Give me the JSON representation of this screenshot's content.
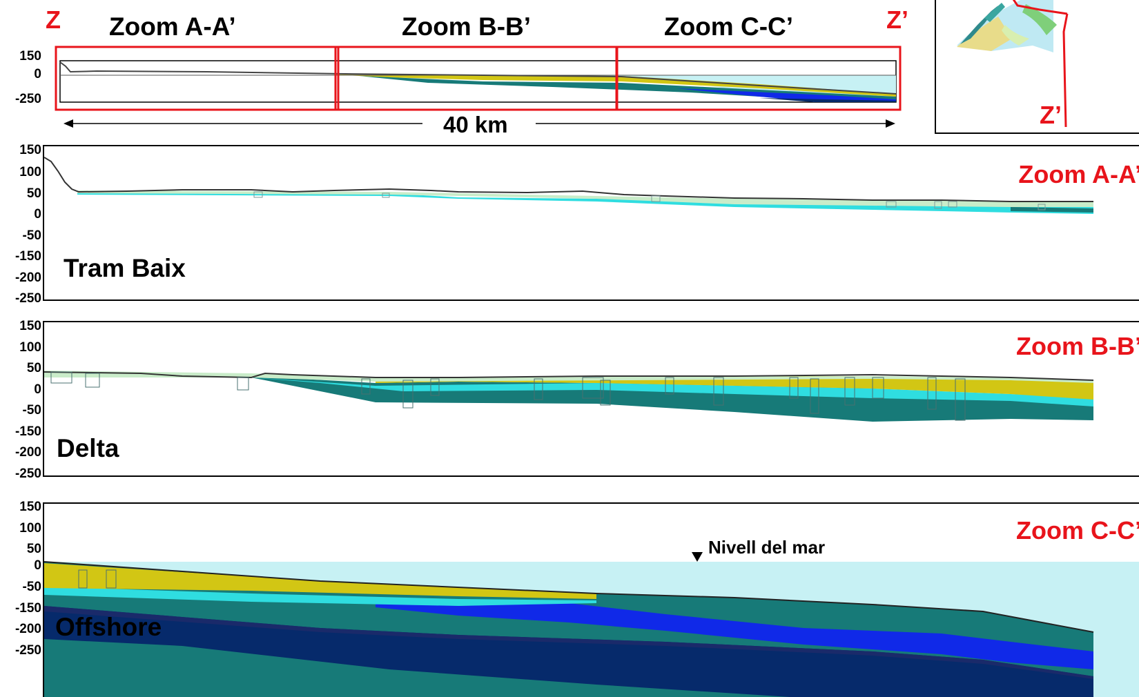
{
  "overview": {
    "left_end": "Z",
    "right_end": "Z’",
    "zoom_titles": [
      "Zoom A-A’",
      "Zoom B-B’",
      "Zoom C-C’"
    ],
    "y_ticks": [
      "150",
      "0",
      "-250"
    ],
    "scale_label": "40 km"
  },
  "inset_map": {
    "end_label": "Z’"
  },
  "panels": [
    {
      "name": "Tram Baix",
      "zoom": "Zoom A-A’",
      "y_ticks": [
        "150",
        "100",
        "50",
        "0",
        "-50",
        "-150",
        "-200",
        "-250"
      ]
    },
    {
      "name": "Delta",
      "zoom": "Zoom B-B’",
      "y_ticks": [
        "150",
        "100",
        "50",
        "0",
        "-50",
        "-150",
        "-200",
        "-250"
      ]
    },
    {
      "name": "Offshore",
      "zoom": "Zoom C-C’",
      "y_ticks": [
        "150",
        "100",
        "50",
        "0",
        "-50",
        "-150",
        "-200",
        "-250"
      ],
      "annotation": "Nivell del mar"
    }
  ],
  "colors": {
    "highlight": "#e8141b",
    "sea": "#c7f1f4",
    "light_green": "#c9ecc9",
    "cyan_layer": "#2fdde0",
    "yellow_layer": "#d2c614",
    "teal_layer": "#177a78",
    "dark_navy": "#062a6b",
    "blue_layer": "#1029e8"
  }
}
